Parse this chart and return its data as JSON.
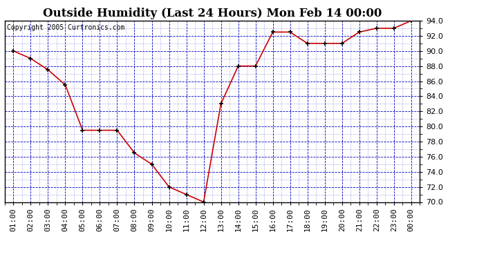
{
  "title": "Outside Humidity (Last 24 Hours) Mon Feb 14 00:00",
  "copyright": "Copyright 2005 Curtronics.com",
  "x_labels": [
    "01:00",
    "02:00",
    "03:00",
    "04:00",
    "05:00",
    "06:00",
    "07:00",
    "08:00",
    "09:00",
    "10:00",
    "11:00",
    "12:00",
    "13:00",
    "14:00",
    "15:00",
    "16:00",
    "17:00",
    "18:00",
    "19:00",
    "20:00",
    "21:00",
    "22:00",
    "23:00",
    "00:00"
  ],
  "x_values": [
    1,
    2,
    3,
    4,
    5,
    6,
    7,
    8,
    9,
    10,
    11,
    12,
    13,
    14,
    15,
    16,
    17,
    18,
    19,
    20,
    21,
    22,
    23,
    24
  ],
  "y_values": [
    90.0,
    89.0,
    87.5,
    85.5,
    79.5,
    79.5,
    79.5,
    76.5,
    75.0,
    72.0,
    71.0,
    70.0,
    83.0,
    88.0,
    88.0,
    92.5,
    92.5,
    91.0,
    91.0,
    91.0,
    92.5,
    93.0,
    93.0,
    94.0
  ],
  "ylim": [
    70.0,
    94.0
  ],
  "ytick_min": 70.0,
  "ytick_max": 94.0,
  "ytick_step": 2.0,
  "line_color": "#cc0000",
  "marker_color": "#000000",
  "bg_color": "#ffffff",
  "plot_bg_color": "#ffffff",
  "grid_color": "#0000bb",
  "title_fontsize": 12,
  "copyright_fontsize": 7,
  "tick_fontsize": 8,
  "title_fontfamily": "serif"
}
